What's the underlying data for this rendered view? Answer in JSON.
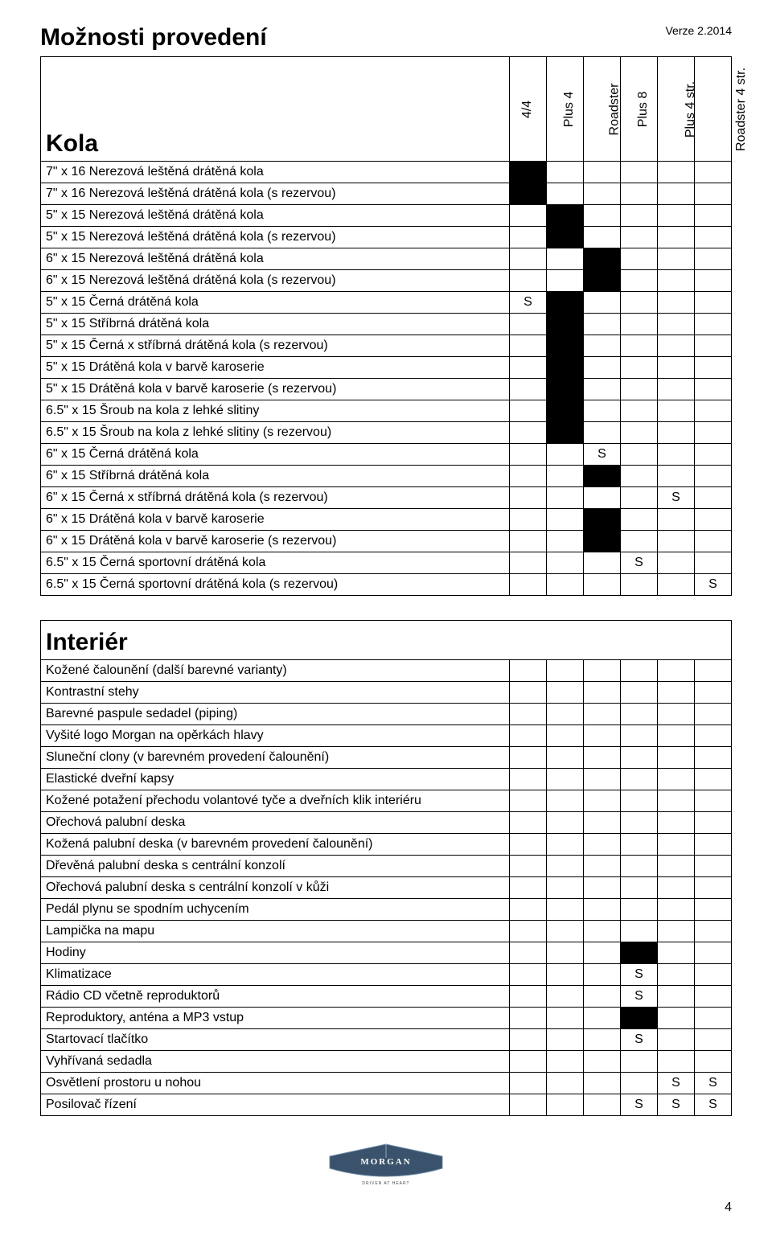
{
  "meta": {
    "title": "Možnosti provedení",
    "version": "Verze 2.2014",
    "page": "4"
  },
  "columns": [
    "4/4",
    "Plus 4",
    "Roadster",
    "Plus 8",
    "Plus 4 str.",
    "Roadster 4 str."
  ],
  "kola": {
    "heading": "Kola",
    "rows": [
      {
        "label": "7\" x 16 Nerezová leštěná drátěná kola",
        "cells": [
          "B",
          "",
          "",
          "",
          "",
          ""
        ]
      },
      {
        "label": "7\" x 16 Nerezová leštěná drátěná kola (s rezervou)",
        "cells": [
          "B",
          "",
          "",
          "",
          "",
          ""
        ]
      },
      {
        "label": "5\" x 15 Nerezová leštěná drátěná kola",
        "cells": [
          "",
          "B",
          "",
          "",
          "",
          ""
        ]
      },
      {
        "label": "5\" x 15 Nerezová leštěná drátěná kola (s rezervou)",
        "cells": [
          "",
          "B",
          "",
          "",
          "",
          ""
        ]
      },
      {
        "label": "6\" x 15 Nerezová leštěná drátěná kola",
        "cells": [
          "",
          "",
          "B",
          "",
          "",
          ""
        ]
      },
      {
        "label": "6\" x 15 Nerezová leštěná drátěná kola (s rezervou)",
        "cells": [
          "",
          "",
          "B",
          "",
          "",
          ""
        ]
      },
      {
        "label": "5\" x 15 Černá drátěná kola",
        "cells": [
          "S",
          "B",
          "",
          "",
          "",
          ""
        ]
      },
      {
        "label": "5\" x 15 Stříbrná drátěná kola",
        "cells": [
          "",
          "B",
          "",
          "",
          "",
          ""
        ]
      },
      {
        "label": "5\" x 15 Černá x stříbrná drátěná kola (s rezervou)",
        "cells": [
          "",
          "B",
          "",
          "",
          "",
          ""
        ]
      },
      {
        "label": "5\" x 15 Drátěná kola v barvě karoserie",
        "cells": [
          "",
          "B",
          "",
          "",
          "",
          ""
        ]
      },
      {
        "label": "5\" x 15 Drátěná kola v barvě karoserie (s rezervou)",
        "cells": [
          "",
          "B",
          "",
          "",
          "",
          ""
        ]
      },
      {
        "label": "6.5\" x 15 Šroub na kola z lehké slitiny",
        "cells": [
          "",
          "B",
          "",
          "",
          "",
          ""
        ]
      },
      {
        "label": "6.5\" x 15 Šroub na kola z lehké slitiny (s rezervou)",
        "cells": [
          "",
          "B",
          "",
          "",
          "",
          ""
        ]
      },
      {
        "label": "6\" x 15 Černá drátěná kola",
        "cells": [
          "",
          "",
          "S",
          "",
          "",
          ""
        ]
      },
      {
        "label": "6\" x 15 Stříbrná drátěná kola",
        "cells": [
          "",
          "",
          "B",
          "",
          "",
          ""
        ]
      },
      {
        "label": "6\" x 15 Černá x stříbrná drátěná kola (s rezervou)",
        "cells": [
          "",
          "",
          "",
          "",
          "S",
          ""
        ]
      },
      {
        "label": "6\" x 15 Drátěná kola v barvě karoserie",
        "cells": [
          "",
          "",
          "B",
          "",
          "",
          ""
        ]
      },
      {
        "label": "6\" x 15 Drátěná kola v barvě karoserie (s rezervou)",
        "cells": [
          "",
          "",
          "B",
          "",
          "",
          ""
        ]
      },
      {
        "label": "6.5\" x 15 Černá sportovní drátěná kola",
        "cells": [
          "",
          "",
          "",
          "S",
          "",
          ""
        ]
      },
      {
        "label": "6.5\" x 15 Černá sportovní drátěná kola (s rezervou)",
        "cells": [
          "",
          "",
          "",
          "",
          "",
          "S"
        ]
      }
    ]
  },
  "interier": {
    "heading": "Interiér",
    "rows": [
      {
        "label": "Kožené čalounění (další barevné varianty)",
        "cells": [
          "",
          "",
          "",
          "",
          "",
          ""
        ]
      },
      {
        "label": "Kontrastní stehy",
        "cells": [
          "",
          "",
          "",
          "",
          "",
          ""
        ]
      },
      {
        "label": "Barevné paspule sedadel (piping)",
        "cells": [
          "",
          "",
          "",
          "",
          "",
          ""
        ]
      },
      {
        "label": "Vyšité logo Morgan na opěrkách hlavy",
        "cells": [
          "",
          "",
          "",
          "",
          "",
          ""
        ]
      },
      {
        "label": "Sluneční clony (v barevném provedení čalounění)",
        "cells": [
          "",
          "",
          "",
          "",
          "",
          ""
        ]
      },
      {
        "label": "Elastické dveřní kapsy",
        "cells": [
          "",
          "",
          "",
          "",
          "",
          ""
        ]
      },
      {
        "label": "Kožené potažení přechodu volantové tyče a dveřních klik interiéru",
        "cells": [
          "",
          "",
          "",
          "",
          "",
          ""
        ]
      },
      {
        "label": "Ořechová palubní deska",
        "cells": [
          "",
          "",
          "",
          "",
          "",
          ""
        ]
      },
      {
        "label": "Kožená palubní deska (v barevném provedení čalounění)",
        "cells": [
          "",
          "",
          "",
          "",
          "",
          ""
        ]
      },
      {
        "label": "Dřevěná palubní deska s centrální konzolí",
        "cells": [
          "",
          "",
          "",
          "",
          "",
          ""
        ]
      },
      {
        "label": "Ořechová palubní deska s centrální konzolí v kůži",
        "cells": [
          "",
          "",
          "",
          "",
          "",
          ""
        ]
      },
      {
        "label": "Pedál plynu se spodním uchycením",
        "cells": [
          "",
          "",
          "",
          "",
          "",
          ""
        ]
      },
      {
        "label": "Lampička na mapu",
        "cells": [
          "",
          "",
          "",
          "",
          "",
          ""
        ]
      },
      {
        "label": "Hodiny",
        "cells": [
          "",
          "",
          "",
          "B",
          "",
          ""
        ]
      },
      {
        "label": "Klimatizace",
        "cells": [
          "",
          "",
          "",
          "S",
          "",
          ""
        ]
      },
      {
        "label": "Rádio CD včetně reproduktorů",
        "cells": [
          "",
          "",
          "",
          "S",
          "",
          ""
        ]
      },
      {
        "label": "Reproduktory, anténa a MP3 vstup",
        "cells": [
          "",
          "",
          "",
          "B",
          "",
          ""
        ]
      },
      {
        "label": "Startovací tlačítko",
        "cells": [
          "",
          "",
          "",
          "S",
          "",
          ""
        ]
      },
      {
        "label": "Vyhřívaná sedadla",
        "cells": [
          "",
          "",
          "",
          "",
          "",
          ""
        ]
      },
      {
        "label": "Osvětlení prostoru u nohou",
        "cells": [
          "",
          "",
          "",
          "",
          "S",
          "S"
        ]
      },
      {
        "label": "Posilovač řízení",
        "cells": [
          "",
          "",
          "",
          "S",
          "S",
          "S"
        ]
      }
    ]
  },
  "logo": {
    "brand": "MORGAN",
    "tagline": "DRIVEN AT HEART"
  }
}
